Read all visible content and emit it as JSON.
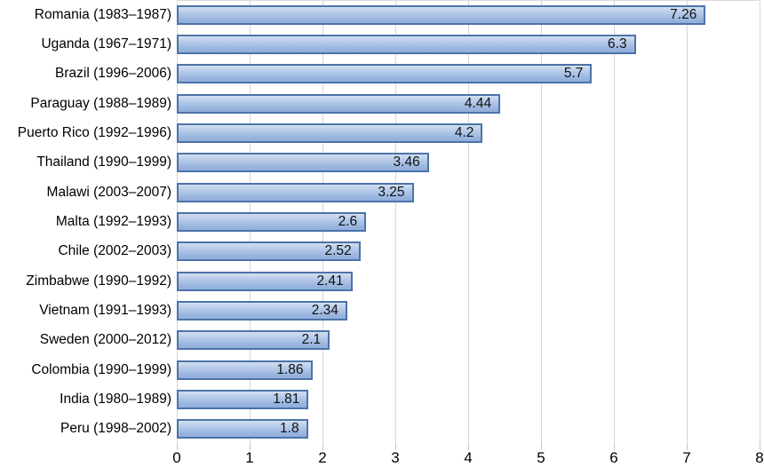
{
  "chart_data": {
    "type": "bar",
    "orientation": "horizontal",
    "title": "",
    "xlabel": "",
    "ylabel": "",
    "categories": [
      "Romania (1983–1987)",
      "Uganda (1967–1971)",
      "Brazil (1996–2006)",
      "Paraguay (1988–1989)",
      "Puerto Rico (1992–1996)",
      "Thailand (1990–1999)",
      "Malawi (2003–2007)",
      "Malta (1992–1993)",
      "Chile (2002–2003)",
      "Zimbabwe (1990–1992)",
      "Vietnam (1991–1993)",
      "Sweden (2000–2012)",
      "Colombia (1990–1999)",
      "India (1980–1989)",
      "Peru (1998–2002)"
    ],
    "values": [
      7.26,
      6.3,
      5.7,
      4.44,
      4.2,
      3.46,
      3.25,
      2.6,
      2.52,
      2.41,
      2.34,
      2.1,
      1.86,
      1.81,
      1.8
    ],
    "value_labels": [
      "7.26",
      "6.3",
      "5.7",
      "4.44",
      "4.2",
      "3.46",
      "3.25",
      "2.6",
      "2.52",
      "2.41",
      "2.34",
      "2.1",
      "1.86",
      "1.81",
      "1.8"
    ],
    "xlim": [
      0,
      8
    ],
    "x_ticks": [
      "0",
      "1",
      "2",
      "3",
      "4",
      "5",
      "6",
      "7",
      "8"
    ],
    "grid": "vertical-only",
    "legend": "none",
    "colors": {
      "bar_fill_top": "#d2dff1",
      "bar_fill_bottom": "#90aed9",
      "bar_border": "#4c73a8",
      "gridline": "#d6d6d6",
      "tick": "#c4c4c4",
      "text": "#000000"
    }
  }
}
